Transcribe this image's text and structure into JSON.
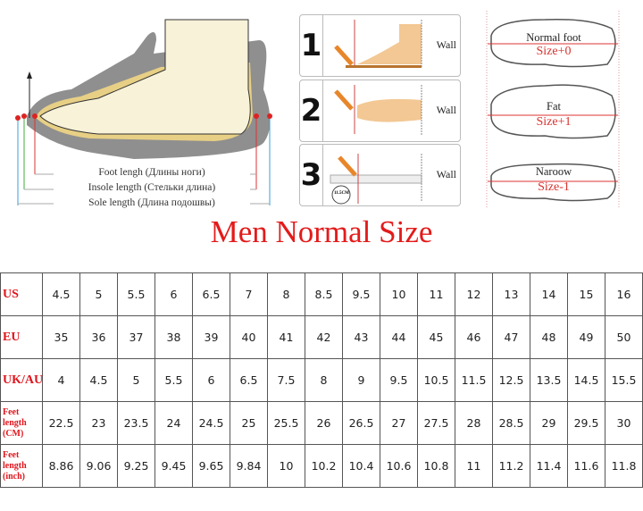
{
  "diagram": {
    "shoe_labels": [
      "Foot lengh (Длины ноги)",
      "Insole length (Стельки длина)",
      "Sole length (Длина подошвы)"
    ],
    "steps": [
      {
        "number": "1",
        "wall_label": "Wall"
      },
      {
        "number": "2",
        "wall_label": "Wall"
      },
      {
        "number": "3",
        "wall_label": "Wall",
        "ruler_reading": "11.5CM"
      }
    ],
    "foot_types": [
      {
        "label": "Normal foot",
        "size": "Size+0"
      },
      {
        "label": "Fat",
        "size": "Size+1"
      },
      {
        "label": "Naroow",
        "size": "Size-1"
      }
    ]
  },
  "title": "Men Normal Size",
  "colors": {
    "accent_red": "#e31b1b",
    "header_red": "#e0141c"
  },
  "size_table": {
    "rows": [
      {
        "header": "US",
        "values": [
          "4.5",
          "5",
          "5.5",
          "6",
          "6.5",
          "7",
          "8",
          "8.5",
          "9.5",
          "10",
          "11",
          "12",
          "13",
          "14",
          "15",
          "16"
        ]
      },
      {
        "header": "EU",
        "values": [
          "35",
          "36",
          "37",
          "38",
          "39",
          "40",
          "41",
          "42",
          "43",
          "44",
          "45",
          "46",
          "47",
          "48",
          "49",
          "50"
        ]
      },
      {
        "header": "UK/AU",
        "values": [
          "4",
          "4.5",
          "5",
          "5.5",
          "6",
          "6.5",
          "7.5",
          "8",
          "9",
          "9.5",
          "10.5",
          "11.5",
          "12.5",
          "13.5",
          "14.5",
          "15.5"
        ]
      },
      {
        "header": "Feet length (CM)",
        "values": [
          "22.5",
          "23",
          "23.5",
          "24",
          "24.5",
          "25",
          "25.5",
          "26",
          "26.5",
          "27",
          "27.5",
          "28",
          "28.5",
          "29",
          "29.5",
          "30"
        ]
      },
      {
        "header": "Feet length (inch)",
        "values": [
          "8.86",
          "9.06",
          "9.25",
          "9.45",
          "9.65",
          "9.84",
          "10",
          "10.2",
          "10.4",
          "10.6",
          "10.8",
          "11",
          "11.2",
          "11.4",
          "11.6",
          "11.8"
        ]
      }
    ]
  }
}
